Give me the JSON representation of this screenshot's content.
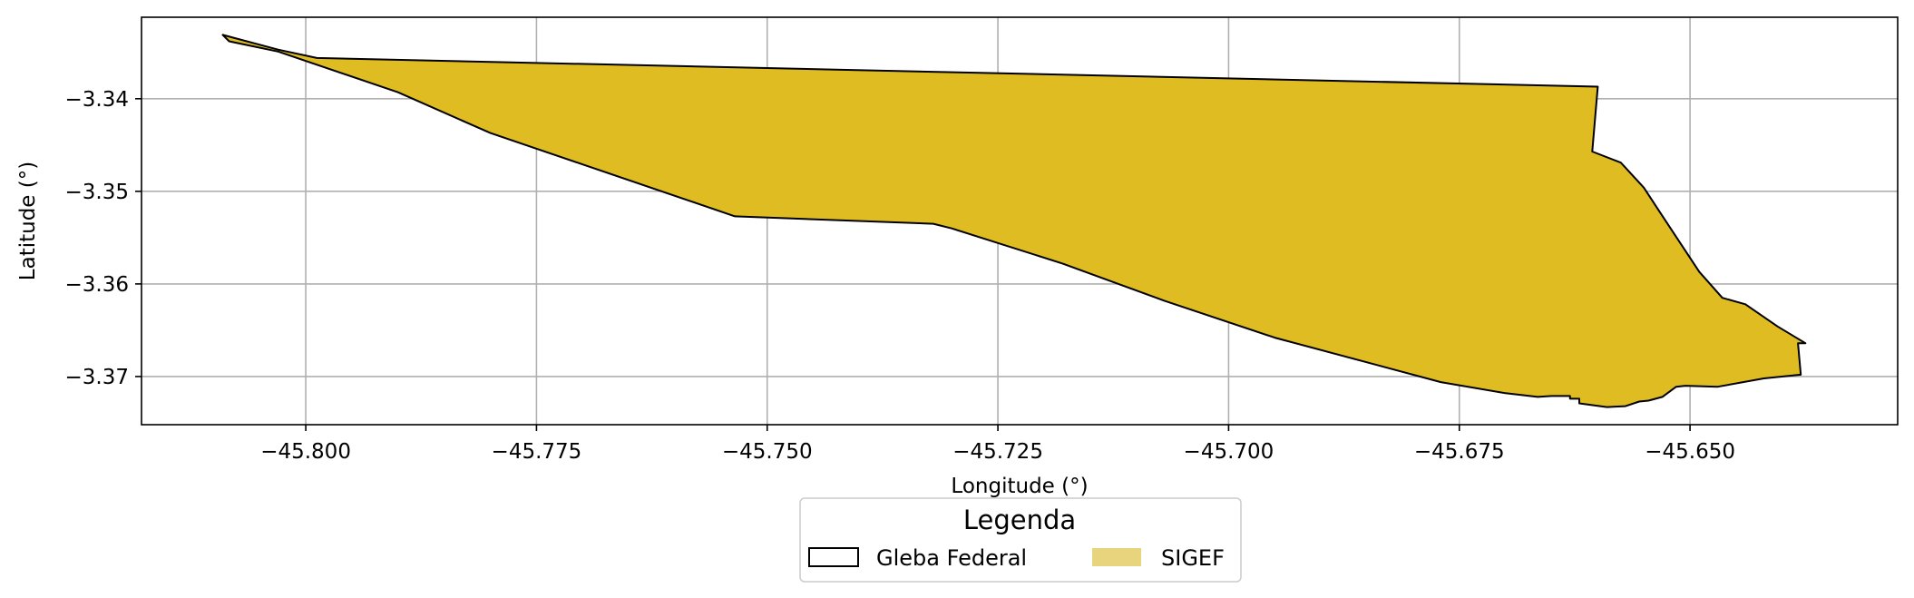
{
  "chart_data": {
    "type": "map",
    "xlabel": "Longitude (°)",
    "ylabel": "Latitude (°)",
    "xlim": [
      -45.8178,
      -45.6275
    ],
    "ylim": [
      -3.3752,
      -3.3312
    ],
    "xticks": [
      -45.8,
      -45.775,
      -45.75,
      -45.725,
      -45.7,
      -45.675,
      -45.65
    ],
    "yticks": [
      -3.34,
      -3.35,
      -3.36,
      -3.37
    ],
    "xtick_labels": [
      "−45.800",
      "−45.775",
      "−45.750",
      "−45.725",
      "−45.700",
      "−45.675",
      "−45.650"
    ],
    "ytick_labels": [
      "−3.34",
      "−3.35",
      "−3.36",
      "−3.37"
    ],
    "grid": true,
    "legend": {
      "title": "Legenda",
      "placement": "bottom-center",
      "entries": [
        {
          "label": "Gleba Federal",
          "style": "outline"
        },
        {
          "label": "SIGEF",
          "style": "fill"
        }
      ]
    },
    "colors": {
      "fill": "#dfbd22",
      "legend_fill": "#e8d47c",
      "edge": "#000000",
      "grid": "#b0b0b0"
    },
    "series": [
      {
        "name": "Gleba Federal",
        "geometry": "polygon",
        "lonlat": [
          [
            -45.809,
            -3.3331
          ],
          [
            -45.803,
            -3.3347
          ],
          [
            -45.7988,
            -3.3356
          ],
          [
            -45.66,
            -3.3387
          ],
          [
            -45.6606,
            -3.3457
          ],
          [
            -45.6575,
            -3.3469
          ],
          [
            -45.655,
            -3.3496
          ],
          [
            -45.6535,
            -3.3519
          ],
          [
            -45.649,
            -3.3587
          ],
          [
            -45.6465,
            -3.3615
          ],
          [
            -45.644,
            -3.3622
          ],
          [
            -45.6405,
            -3.3646
          ],
          [
            -45.6375,
            -3.3664
          ],
          [
            -45.6383,
            -3.3664
          ],
          [
            -45.638,
            -3.3698
          ],
          [
            -45.642,
            -3.3702
          ],
          [
            -45.647,
            -3.3711
          ],
          [
            -45.6505,
            -3.371
          ],
          [
            -45.6515,
            -3.3711
          ],
          [
            -45.653,
            -3.3722
          ],
          [
            -45.6545,
            -3.3726
          ],
          [
            -45.6555,
            -3.3727
          ],
          [
            -45.657,
            -3.3732
          ],
          [
            -45.659,
            -3.3733
          ],
          [
            -45.662,
            -3.3729
          ],
          [
            -45.662,
            -3.3724
          ],
          [
            -45.663,
            -3.3724
          ],
          [
            -45.663,
            -3.3721
          ],
          [
            -45.665,
            -3.3721
          ],
          [
            -45.6665,
            -3.3722
          ],
          [
            -45.67,
            -3.3718
          ],
          [
            -45.677,
            -3.3706
          ],
          [
            -45.695,
            -3.3658
          ],
          [
            -45.707,
            -3.3618
          ],
          [
            -45.718,
            -3.3578
          ],
          [
            -45.73,
            -3.354
          ],
          [
            -45.732,
            -3.3535
          ],
          [
            -45.7535,
            -3.3527
          ],
          [
            -45.78,
            -3.3437
          ],
          [
            -45.79,
            -3.3393
          ],
          [
            -45.803,
            -3.3349
          ],
          [
            -45.8083,
            -3.3338
          ]
        ]
      }
    ]
  }
}
